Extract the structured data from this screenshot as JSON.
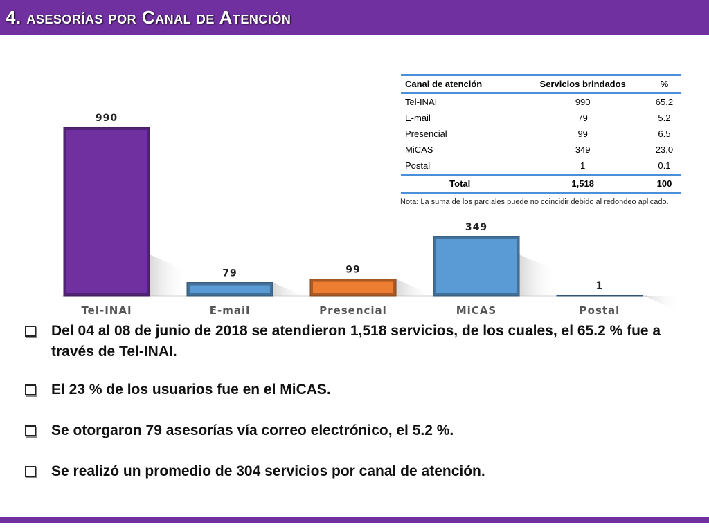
{
  "header": {
    "title": "4. asesorías por Canal de Atención"
  },
  "chart_data": {
    "type": "bar",
    "categories": [
      "Tel-INAI",
      "E-mail",
      "Presencial",
      "MiCAS",
      "Postal"
    ],
    "values": [
      990,
      79,
      99,
      349,
      1
    ],
    "data_labels": [
      "990",
      "79",
      "99",
      "349",
      "1"
    ],
    "colors": [
      "#7030a0",
      "#5b9bd5",
      "#ed7d31",
      "#5b9bd5",
      "#5b9bd5"
    ],
    "title": "",
    "xlabel": "",
    "ylabel": "",
    "grid": false,
    "legend": "none"
  },
  "table": {
    "headers": [
      "Canal de atención",
      "Servicios brindados",
      "%"
    ],
    "rows": [
      [
        "Tel-INAI",
        "990",
        "65.2"
      ],
      [
        "E-mail",
        "79",
        "5.2"
      ],
      [
        "Presencial",
        "99",
        "6.5"
      ],
      [
        "MiCAS",
        "349",
        "23.0"
      ],
      [
        "Postal",
        "1",
        "0.1"
      ]
    ],
    "total": [
      "Total",
      "1,518",
      "100"
    ],
    "note": "Nota: La suma de los parciales puede no coincidir debido al redondeo aplicado."
  },
  "bullets": [
    "Del 04 al 08 de junio de 2018 se atendieron 1,518 servicios, de los cuales, el 65.2 % fue a través de Tel-INAI.",
    "El 23 % de los usuarios fue en el MiCAS.",
    "Se otorgaron 79 asesorías vía correo electrónico, el 5.2 %.",
    "Se realizó un promedio de 304 servicios por canal de atención."
  ],
  "colors": {
    "accent": "#7030a0",
    "table_rule": "#4a8fd9"
  }
}
